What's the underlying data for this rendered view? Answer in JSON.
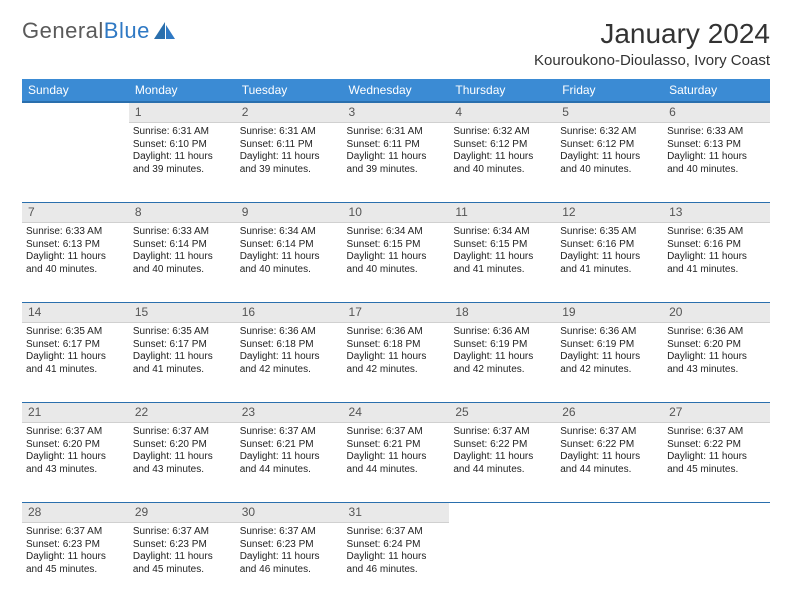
{
  "logo": {
    "word1": "General",
    "word2": "Blue"
  },
  "title": "January 2024",
  "location": "Kouroukono-Dioulasso, Ivory Coast",
  "colors": {
    "header_bg": "#3b8bd4",
    "header_border": "#2a6fad",
    "daynum_bg": "#e9e9e9",
    "text": "#212121",
    "logo_gray": "#5a5a5a",
    "logo_blue": "#2f79c4"
  },
  "weekdays": [
    "Sunday",
    "Monday",
    "Tuesday",
    "Wednesday",
    "Thursday",
    "Friday",
    "Saturday"
  ],
  "weeks": [
    {
      "nums": [
        "",
        "1",
        "2",
        "3",
        "4",
        "5",
        "6"
      ],
      "cells": [
        {
          "sunrise": "",
          "sunset": "",
          "daylight": ""
        },
        {
          "sunrise": "Sunrise: 6:31 AM",
          "sunset": "Sunset: 6:10 PM",
          "daylight": "Daylight: 11 hours and 39 minutes."
        },
        {
          "sunrise": "Sunrise: 6:31 AM",
          "sunset": "Sunset: 6:11 PM",
          "daylight": "Daylight: 11 hours and 39 minutes."
        },
        {
          "sunrise": "Sunrise: 6:31 AM",
          "sunset": "Sunset: 6:11 PM",
          "daylight": "Daylight: 11 hours and 39 minutes."
        },
        {
          "sunrise": "Sunrise: 6:32 AM",
          "sunset": "Sunset: 6:12 PM",
          "daylight": "Daylight: 11 hours and 40 minutes."
        },
        {
          "sunrise": "Sunrise: 6:32 AM",
          "sunset": "Sunset: 6:12 PM",
          "daylight": "Daylight: 11 hours and 40 minutes."
        },
        {
          "sunrise": "Sunrise: 6:33 AM",
          "sunset": "Sunset: 6:13 PM",
          "daylight": "Daylight: 11 hours and 40 minutes."
        }
      ]
    },
    {
      "nums": [
        "7",
        "8",
        "9",
        "10",
        "11",
        "12",
        "13"
      ],
      "cells": [
        {
          "sunrise": "Sunrise: 6:33 AM",
          "sunset": "Sunset: 6:13 PM",
          "daylight": "Daylight: 11 hours and 40 minutes."
        },
        {
          "sunrise": "Sunrise: 6:33 AM",
          "sunset": "Sunset: 6:14 PM",
          "daylight": "Daylight: 11 hours and 40 minutes."
        },
        {
          "sunrise": "Sunrise: 6:34 AM",
          "sunset": "Sunset: 6:14 PM",
          "daylight": "Daylight: 11 hours and 40 minutes."
        },
        {
          "sunrise": "Sunrise: 6:34 AM",
          "sunset": "Sunset: 6:15 PM",
          "daylight": "Daylight: 11 hours and 40 minutes."
        },
        {
          "sunrise": "Sunrise: 6:34 AM",
          "sunset": "Sunset: 6:15 PM",
          "daylight": "Daylight: 11 hours and 41 minutes."
        },
        {
          "sunrise": "Sunrise: 6:35 AM",
          "sunset": "Sunset: 6:16 PM",
          "daylight": "Daylight: 11 hours and 41 minutes."
        },
        {
          "sunrise": "Sunrise: 6:35 AM",
          "sunset": "Sunset: 6:16 PM",
          "daylight": "Daylight: 11 hours and 41 minutes."
        }
      ]
    },
    {
      "nums": [
        "14",
        "15",
        "16",
        "17",
        "18",
        "19",
        "20"
      ],
      "cells": [
        {
          "sunrise": "Sunrise: 6:35 AM",
          "sunset": "Sunset: 6:17 PM",
          "daylight": "Daylight: 11 hours and 41 minutes."
        },
        {
          "sunrise": "Sunrise: 6:35 AM",
          "sunset": "Sunset: 6:17 PM",
          "daylight": "Daylight: 11 hours and 41 minutes."
        },
        {
          "sunrise": "Sunrise: 6:36 AM",
          "sunset": "Sunset: 6:18 PM",
          "daylight": "Daylight: 11 hours and 42 minutes."
        },
        {
          "sunrise": "Sunrise: 6:36 AM",
          "sunset": "Sunset: 6:18 PM",
          "daylight": "Daylight: 11 hours and 42 minutes."
        },
        {
          "sunrise": "Sunrise: 6:36 AM",
          "sunset": "Sunset: 6:19 PM",
          "daylight": "Daylight: 11 hours and 42 minutes."
        },
        {
          "sunrise": "Sunrise: 6:36 AM",
          "sunset": "Sunset: 6:19 PM",
          "daylight": "Daylight: 11 hours and 42 minutes."
        },
        {
          "sunrise": "Sunrise: 6:36 AM",
          "sunset": "Sunset: 6:20 PM",
          "daylight": "Daylight: 11 hours and 43 minutes."
        }
      ]
    },
    {
      "nums": [
        "21",
        "22",
        "23",
        "24",
        "25",
        "26",
        "27"
      ],
      "cells": [
        {
          "sunrise": "Sunrise: 6:37 AM",
          "sunset": "Sunset: 6:20 PM",
          "daylight": "Daylight: 11 hours and 43 minutes."
        },
        {
          "sunrise": "Sunrise: 6:37 AM",
          "sunset": "Sunset: 6:20 PM",
          "daylight": "Daylight: 11 hours and 43 minutes."
        },
        {
          "sunrise": "Sunrise: 6:37 AM",
          "sunset": "Sunset: 6:21 PM",
          "daylight": "Daylight: 11 hours and 44 minutes."
        },
        {
          "sunrise": "Sunrise: 6:37 AM",
          "sunset": "Sunset: 6:21 PM",
          "daylight": "Daylight: 11 hours and 44 minutes."
        },
        {
          "sunrise": "Sunrise: 6:37 AM",
          "sunset": "Sunset: 6:22 PM",
          "daylight": "Daylight: 11 hours and 44 minutes."
        },
        {
          "sunrise": "Sunrise: 6:37 AM",
          "sunset": "Sunset: 6:22 PM",
          "daylight": "Daylight: 11 hours and 44 minutes."
        },
        {
          "sunrise": "Sunrise: 6:37 AM",
          "sunset": "Sunset: 6:22 PM",
          "daylight": "Daylight: 11 hours and 45 minutes."
        }
      ]
    },
    {
      "nums": [
        "28",
        "29",
        "30",
        "31",
        "",
        "",
        ""
      ],
      "cells": [
        {
          "sunrise": "Sunrise: 6:37 AM",
          "sunset": "Sunset: 6:23 PM",
          "daylight": "Daylight: 11 hours and 45 minutes."
        },
        {
          "sunrise": "Sunrise: 6:37 AM",
          "sunset": "Sunset: 6:23 PM",
          "daylight": "Daylight: 11 hours and 45 minutes."
        },
        {
          "sunrise": "Sunrise: 6:37 AM",
          "sunset": "Sunset: 6:23 PM",
          "daylight": "Daylight: 11 hours and 46 minutes."
        },
        {
          "sunrise": "Sunrise: 6:37 AM",
          "sunset": "Sunset: 6:24 PM",
          "daylight": "Daylight: 11 hours and 46 minutes."
        },
        {
          "sunrise": "",
          "sunset": "",
          "daylight": ""
        },
        {
          "sunrise": "",
          "sunset": "",
          "daylight": ""
        },
        {
          "sunrise": "",
          "sunset": "",
          "daylight": ""
        }
      ]
    }
  ]
}
